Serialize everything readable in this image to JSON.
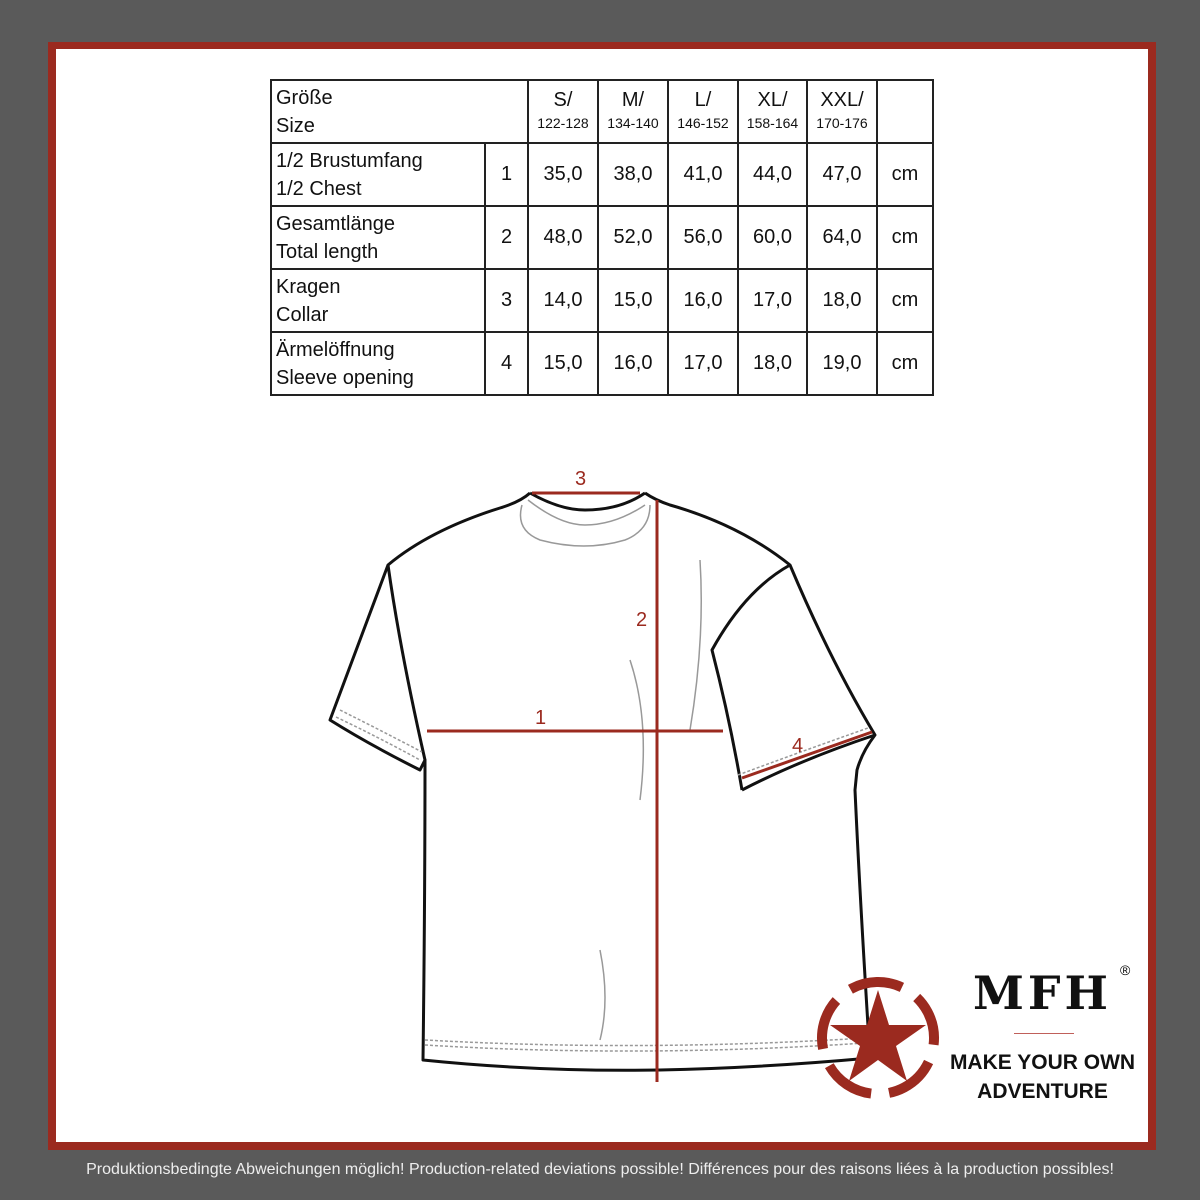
{
  "colors": {
    "background": "#5a5a5a",
    "frame": "#9b2a1f",
    "accent": "#9b2a1f"
  },
  "table": {
    "header": {
      "label_de": "Größe",
      "label_en": "Size"
    },
    "sizes": [
      {
        "name": "S/",
        "range": "122-128"
      },
      {
        "name": "M/",
        "range": "134-140"
      },
      {
        "name": "L/",
        "range": "146-152"
      },
      {
        "name": "XL/",
        "range": "158-164"
      },
      {
        "name": "XXL/",
        "range": "170-176"
      }
    ],
    "rows": [
      {
        "de": "1/2 Brustumfang",
        "en": "1/2 Chest",
        "num": "1",
        "values": [
          "35,0",
          "38,0",
          "41,0",
          "44,0",
          "47,0"
        ],
        "unit": "cm"
      },
      {
        "de": "Gesamtlänge",
        "en": "Total length",
        "num": "2",
        "values": [
          "48,0",
          "52,0",
          "56,0",
          "60,0",
          "64,0"
        ],
        "unit": "cm"
      },
      {
        "de": "Kragen",
        "en": "Collar",
        "num": "3",
        "values": [
          "14,0",
          "15,0",
          "16,0",
          "17,0",
          "18,0"
        ],
        "unit": "cm"
      },
      {
        "de": "Ärmelöffnung",
        "en": "Sleeve opening",
        "num": "4",
        "values": [
          "15,0",
          "16,0",
          "17,0",
          "18,0",
          "19,0"
        ],
        "unit": "cm"
      }
    ]
  },
  "diagram": {
    "markers": [
      "1",
      "2",
      "3",
      "4"
    ]
  },
  "logo": {
    "brand": "MFH",
    "registered": "®",
    "tagline_1": "MAKE YOUR OWN",
    "tagline_2": "ADVENTURE"
  },
  "footer": {
    "text": "Produktionsbedingte Abweichungen möglich! Production-related deviations possible! Différences pour des raisons liées à la production possibles!"
  }
}
